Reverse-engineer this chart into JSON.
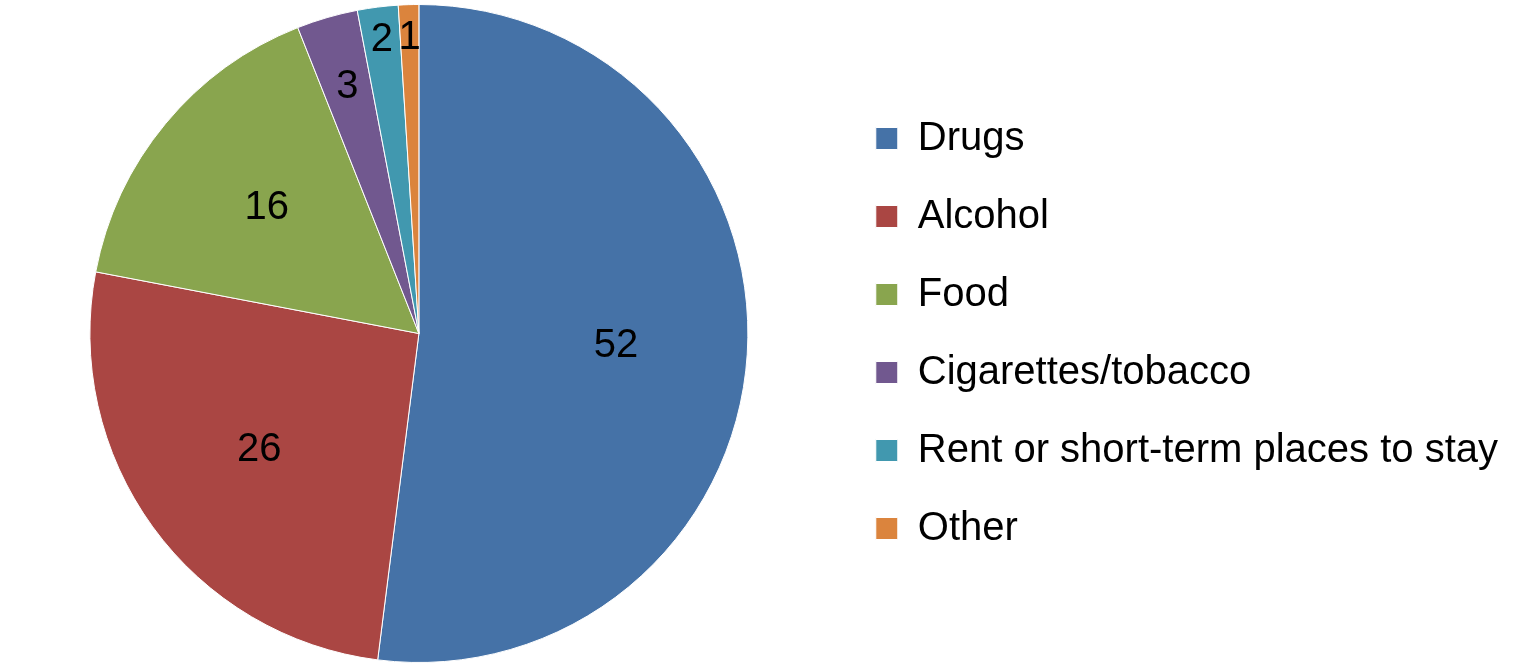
{
  "chart_data": {
    "type": "pie",
    "categories": [
      "Drugs",
      "Alcohol",
      "Food",
      "Cigarettes/tobacco",
      "Rent or short-term places to stay",
      "Other"
    ],
    "values": [
      52,
      26,
      16,
      3,
      2,
      1
    ],
    "colors": [
      "#4572a7",
      "#aa4643",
      "#89a54e",
      "#71588f",
      "#4198af",
      "#db843d"
    ],
    "data_labels": true,
    "legend": "right"
  }
}
